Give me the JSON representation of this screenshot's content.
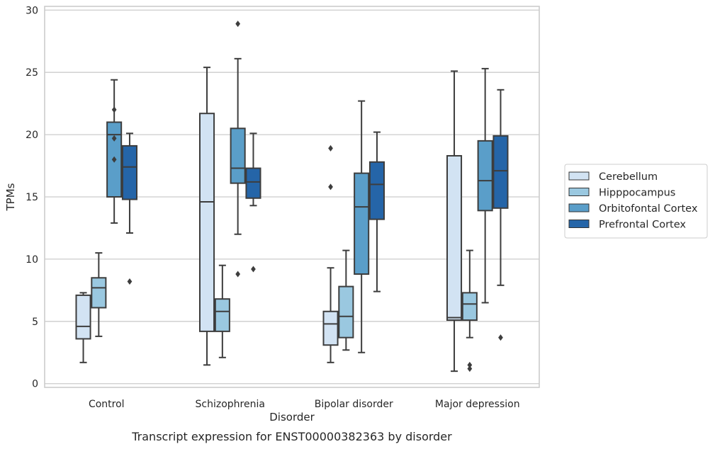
{
  "caption": "Transcript expression for ENST00000382363 by disorder",
  "chart_data": {
    "type": "box",
    "title": "",
    "xlabel": "Disorder",
    "ylabel": "TPMs",
    "ylim": [
      -0.3,
      30.3
    ],
    "yticks": [
      0,
      5,
      10,
      15,
      20,
      25,
      30
    ],
    "grid": "horizontal",
    "legend_position": "outside-right",
    "categories": [
      "Control",
      "Schizophrenia",
      "Bipolar disorder",
      "Major depression"
    ],
    "series": [
      {
        "name": "Cerebellum",
        "color": "#d2e3f3",
        "boxes": [
          {
            "whisker_low": 1.7,
            "q1": 3.6,
            "median": 4.6,
            "q3": 7.1,
            "whisker_high": 7.3,
            "outliers": []
          },
          {
            "whisker_low": 1.5,
            "q1": 4.2,
            "median": 14.6,
            "q3": 21.7,
            "whisker_high": 25.4,
            "outliers": []
          },
          {
            "whisker_low": 1.7,
            "q1": 3.1,
            "median": 4.8,
            "q3": 5.8,
            "whisker_high": 9.3,
            "outliers": [
              15.8,
              18.9
            ]
          },
          {
            "whisker_low": 1.0,
            "q1": 5.1,
            "median": 5.3,
            "q3": 18.3,
            "whisker_high": 25.1,
            "outliers": []
          }
        ]
      },
      {
        "name": "Hipppocampus",
        "color": "#9ac8e0",
        "boxes": [
          {
            "whisker_low": 3.8,
            "q1": 6.1,
            "median": 7.7,
            "q3": 8.5,
            "whisker_high": 10.5,
            "outliers": []
          },
          {
            "whisker_low": 2.1,
            "q1": 4.2,
            "median": 5.8,
            "q3": 6.8,
            "whisker_high": 9.5,
            "outliers": []
          },
          {
            "whisker_low": 2.7,
            "q1": 3.7,
            "median": 5.4,
            "q3": 7.8,
            "whisker_high": 10.7,
            "outliers": []
          },
          {
            "whisker_low": 3.7,
            "q1": 5.1,
            "median": 6.4,
            "q3": 7.3,
            "whisker_high": 10.7,
            "outliers": [
              1.2,
              1.5
            ]
          }
        ]
      },
      {
        "name": "Orbitofontal Cortex",
        "color": "#5a9ec9",
        "boxes": [
          {
            "whisker_low": 12.9,
            "q1": 15.0,
            "median": 20.0,
            "q3": 21.0,
            "whisker_high": 24.4,
            "outliers": [
              18.0,
              19.7,
              22.0
            ]
          },
          {
            "whisker_low": 12.0,
            "q1": 16.1,
            "median": 17.3,
            "q3": 20.5,
            "whisker_high": 26.1,
            "outliers": [
              8.8,
              28.9
            ]
          },
          {
            "whisker_low": 2.5,
            "q1": 8.8,
            "median": 14.2,
            "q3": 16.9,
            "whisker_high": 22.7,
            "outliers": []
          },
          {
            "whisker_low": 6.5,
            "q1": 13.9,
            "median": 16.3,
            "q3": 19.5,
            "whisker_high": 25.3,
            "outliers": []
          }
        ]
      },
      {
        "name": "Prefrontal Cortex",
        "color": "#2565a8",
        "boxes": [
          {
            "whisker_low": 12.1,
            "q1": 14.8,
            "median": 17.4,
            "q3": 19.1,
            "whisker_high": 20.1,
            "outliers": [
              8.2
            ]
          },
          {
            "whisker_low": 14.3,
            "q1": 14.9,
            "median": 16.2,
            "q3": 17.3,
            "whisker_high": 20.1,
            "outliers": [
              9.2
            ]
          },
          {
            "whisker_low": 7.4,
            "q1": 13.2,
            "median": 16.0,
            "q3": 17.8,
            "whisker_high": 20.2,
            "outliers": []
          },
          {
            "whisker_low": 7.9,
            "q1": 14.1,
            "median": 17.1,
            "q3": 19.9,
            "whisker_high": 23.6,
            "outliers": [
              3.7
            ]
          }
        ]
      }
    ]
  }
}
